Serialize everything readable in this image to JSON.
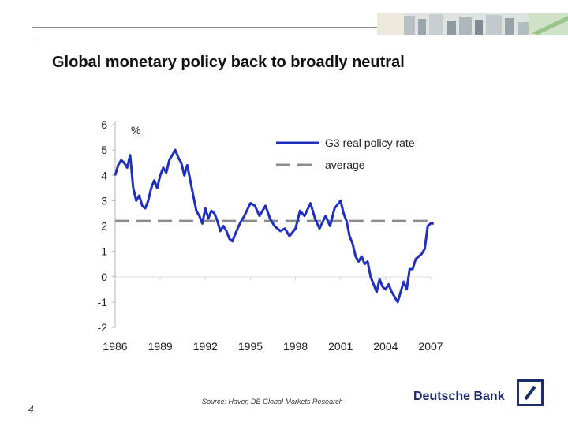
{
  "slide": {
    "title": "Global monetary policy back to broadly neutral",
    "page_number": "4",
    "source": "Source: Haver, DB Global Markets Research",
    "brand": "Deutsche Bank",
    "logo_icon": "deutsche-bank-slash-square-icon",
    "banner_icon": "city-photo-strip-icon"
  },
  "chart_data": {
    "type": "line",
    "unit_label": "%",
    "xlim": [
      1986,
      2007
    ],
    "ylim": [
      -2,
      6
    ],
    "x_ticks": [
      "1986",
      "1989",
      "1992",
      "1995",
      "1998",
      "2001",
      "2004",
      "2007"
    ],
    "y_ticks": [
      "6",
      "5",
      "4",
      "3",
      "2",
      "1",
      "0",
      "-1",
      "-2"
    ],
    "legend_position": "top-right",
    "grid": false,
    "series": [
      {
        "name": "G3 real policy rate",
        "color": "#1f2fbf",
        "style": "solid",
        "x": [
          1986.0,
          1986.2,
          1986.4,
          1986.6,
          1986.8,
          1987.0,
          1987.2,
          1987.4,
          1987.6,
          1987.8,
          1988.0,
          1988.2,
          1988.4,
          1988.6,
          1988.8,
          1989.0,
          1989.2,
          1989.4,
          1989.6,
          1989.8,
          1990.0,
          1990.2,
          1990.4,
          1990.6,
          1990.8,
          1991.0,
          1991.2,
          1991.4,
          1991.6,
          1991.8,
          1992.0,
          1992.2,
          1992.4,
          1992.6,
          1992.8,
          1993.0,
          1993.2,
          1993.4,
          1993.6,
          1993.8,
          1994.0,
          1994.3,
          1994.6,
          1995.0,
          1995.3,
          1995.6,
          1996.0,
          1996.3,
          1996.6,
          1997.0,
          1997.3,
          1997.6,
          1998.0,
          1998.3,
          1998.6,
          1999.0,
          1999.3,
          1999.6,
          2000.0,
          2000.3,
          2000.6,
          2001.0,
          2001.2,
          2001.4,
          2001.6,
          2001.8,
          2002.0,
          2002.2,
          2002.4,
          2002.6,
          2002.8,
          2003.0,
          2003.2,
          2003.4,
          2003.6,
          2003.8,
          2004.0,
          2004.2,
          2004.4,
          2004.6,
          2004.8,
          2005.0,
          2005.2,
          2005.4,
          2005.6,
          2005.8,
          2006.0,
          2006.2,
          2006.4,
          2006.6,
          2006.8,
          2007.0,
          2007.2
        ],
        "values": [
          4.0,
          4.4,
          4.6,
          4.5,
          4.3,
          4.8,
          3.5,
          3.0,
          3.2,
          2.8,
          2.7,
          3.0,
          3.5,
          3.8,
          3.5,
          4.0,
          4.3,
          4.1,
          4.6,
          4.8,
          5.0,
          4.7,
          4.5,
          4.0,
          4.4,
          3.8,
          3.2,
          2.6,
          2.4,
          2.1,
          2.7,
          2.3,
          2.6,
          2.5,
          2.2,
          1.8,
          2.0,
          1.8,
          1.5,
          1.4,
          1.7,
          2.1,
          2.4,
          2.9,
          2.8,
          2.4,
          2.8,
          2.3,
          2.0,
          1.8,
          1.9,
          1.6,
          1.9,
          2.6,
          2.4,
          2.9,
          2.3,
          1.9,
          2.4,
          2.0,
          2.7,
          3.0,
          2.5,
          2.2,
          1.6,
          1.3,
          0.8,
          0.6,
          0.8,
          0.5,
          0.6,
          0.0,
          -0.3,
          -0.6,
          -0.1,
          -0.4,
          -0.5,
          -0.3,
          -0.6,
          -0.8,
          -1.0,
          -0.6,
          -0.2,
          -0.5,
          0.3,
          0.3,
          0.7,
          0.8,
          0.9,
          1.1,
          2.0,
          2.1,
          2.1
        ]
      },
      {
        "name": "average",
        "color": "#8c8c8c",
        "style": "dashed",
        "x": [
          1986.0,
          2007.2
        ],
        "values": [
          2.2,
          2.2
        ]
      }
    ]
  }
}
